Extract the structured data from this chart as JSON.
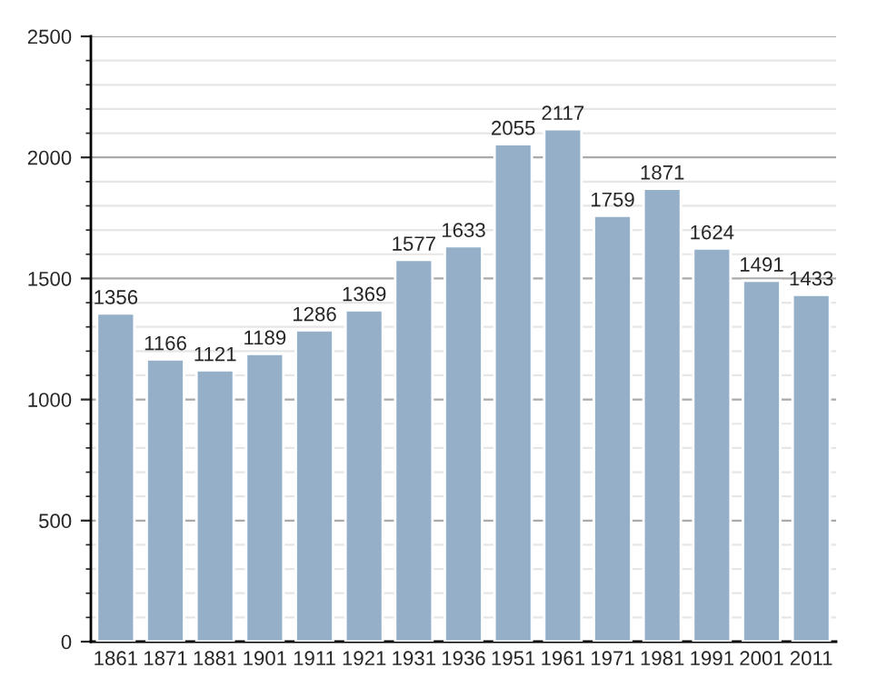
{
  "chart_data": {
    "type": "bar",
    "categories": [
      "1861",
      "1871",
      "1881",
      "1901",
      "1911",
      "1921",
      "1931",
      "1936",
      "1951",
      "1961",
      "1971",
      "1981",
      "1991",
      "2001",
      "2011"
    ],
    "values": [
      1356,
      1166,
      1121,
      1189,
      1286,
      1369,
      1577,
      1633,
      2055,
      2117,
      1759,
      1871,
      1624,
      1491,
      1433
    ],
    "color": "#95afc9",
    "ylim": [
      0,
      2500
    ],
    "yticks": [
      0,
      500,
      1000,
      1500,
      2000,
      2500
    ],
    "grid": "y",
    "data_labels": true
  }
}
